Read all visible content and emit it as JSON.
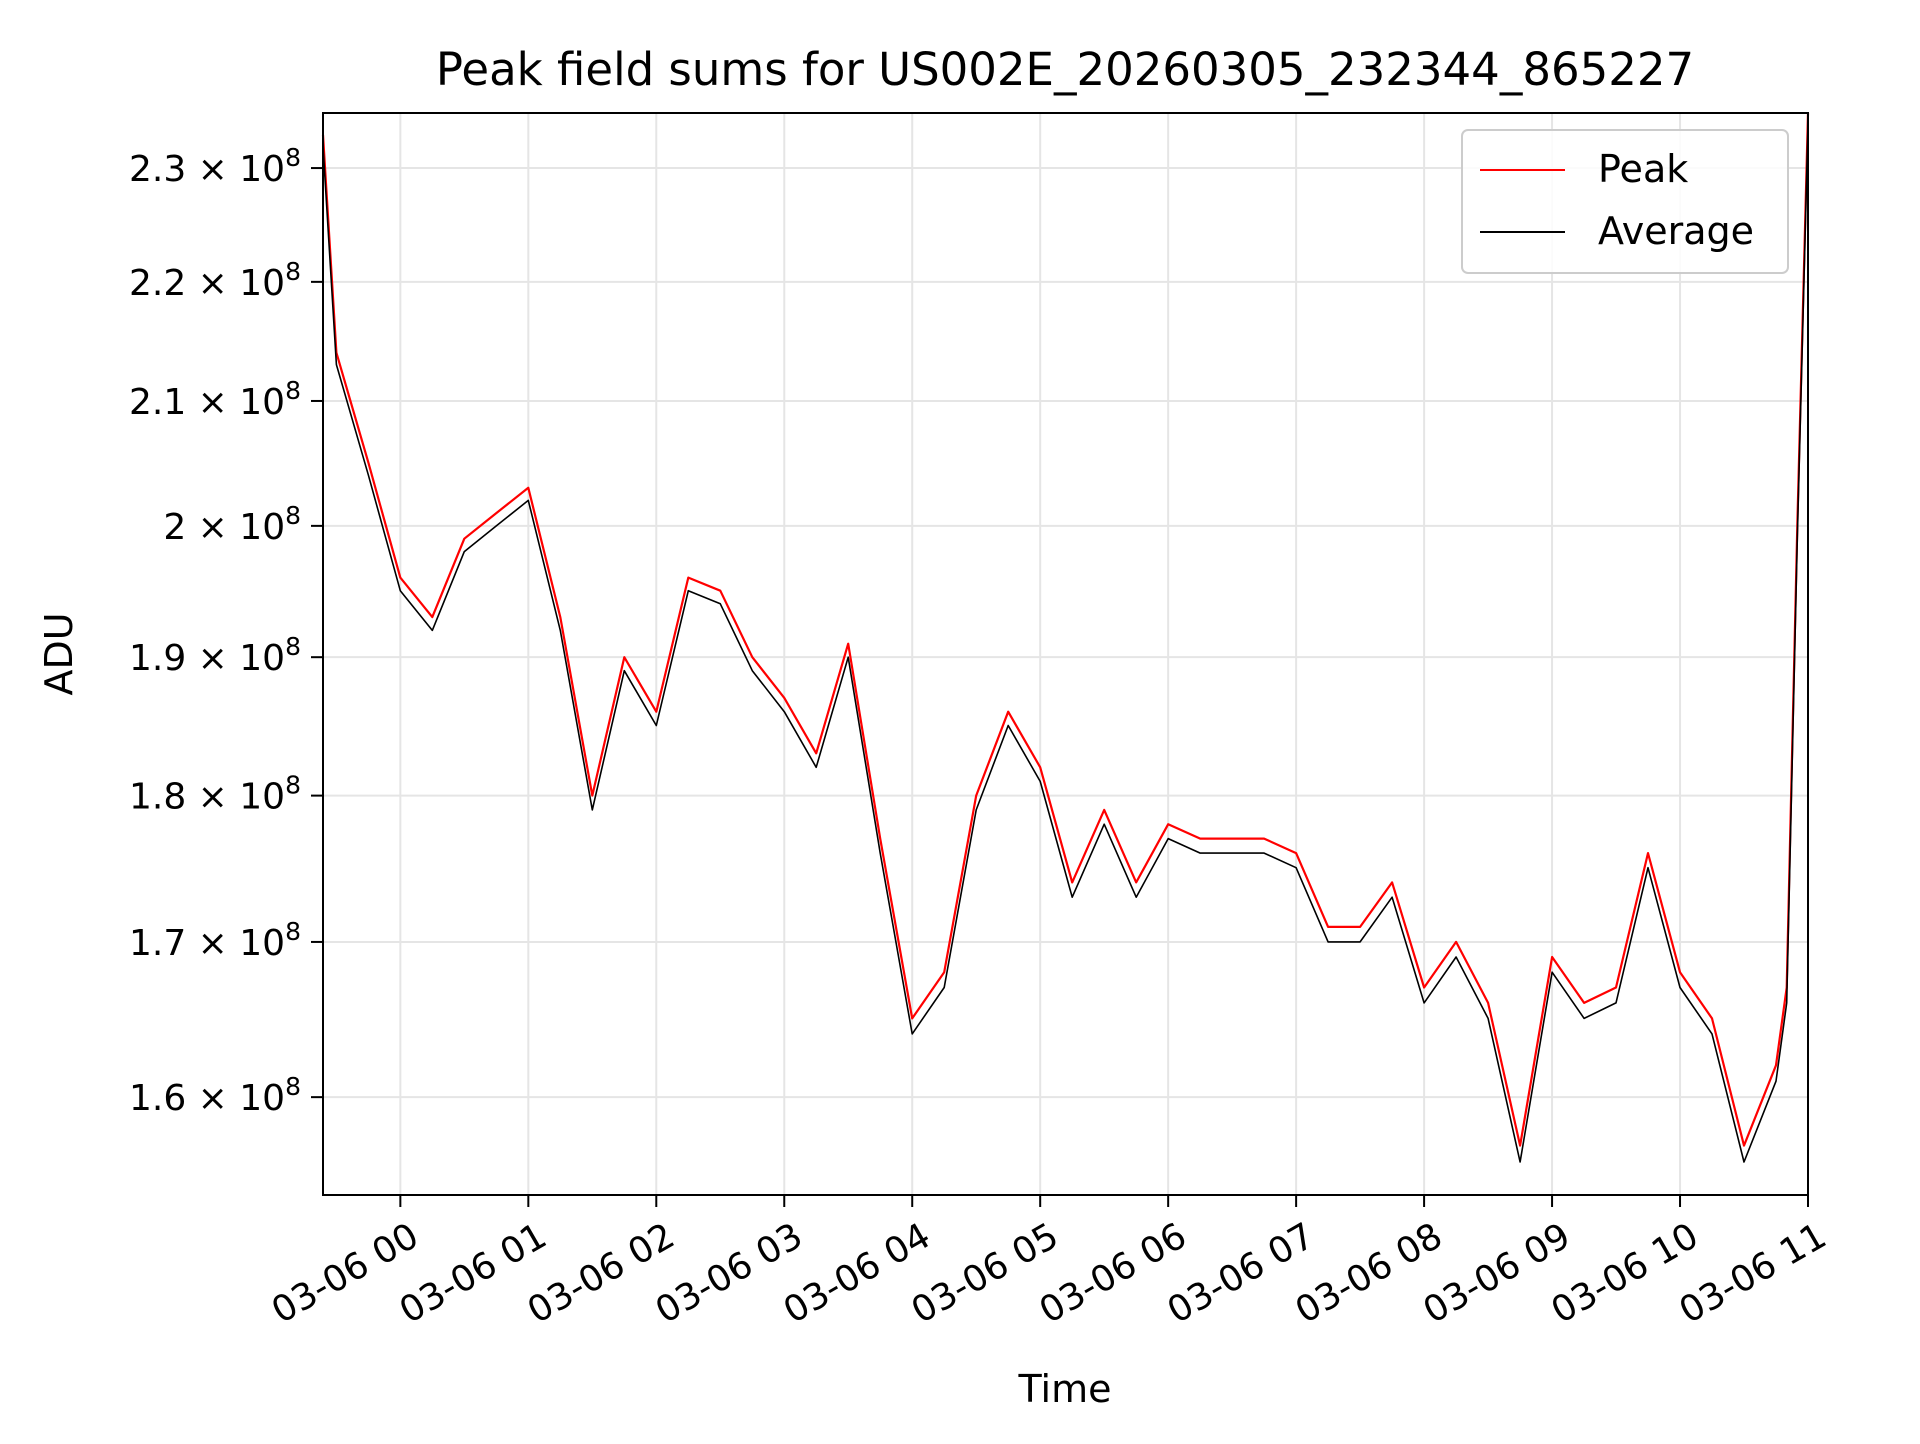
{
  "chart_data": {
    "type": "line",
    "title": "Peak field sums for US002E_20260305_232344_865227",
    "xlabel": "Time",
    "ylabel": "ADU",
    "x_range": [
      "2026-03-05 23:23:44",
      "2026-03-06 11:00:00"
    ],
    "y_range": [
      154000000,
      235000000
    ],
    "y_scale": "log",
    "grid": true,
    "legend": "top-right",
    "x_ticks": [
      "03-06 00",
      "03-06 01",
      "03-06 02",
      "03-06 03",
      "03-06 04",
      "03-06 05",
      "03-06 06",
      "03-06 07",
      "03-06 08",
      "03-06 09",
      "03-06 10",
      "03-06 11"
    ],
    "y_ticks": [
      {
        "value": 160000000,
        "mantissa": "1.6",
        "label": "1.6 × 10^8"
      },
      {
        "value": 170000000,
        "mantissa": "1.7",
        "label": "1.7 × 10^8"
      },
      {
        "value": 180000000,
        "mantissa": "1.8",
        "label": "1.8 × 10^8"
      },
      {
        "value": 190000000,
        "mantissa": "1.9",
        "label": "1.9 × 10^8"
      },
      {
        "value": 200000000,
        "mantissa": "2",
        "label": "2 × 10^8"
      },
      {
        "value": 210000000,
        "mantissa": "2.1",
        "label": "2.1 × 10^8"
      },
      {
        "value": 220000000,
        "mantissa": "2.2",
        "label": "2.2 × 10^8"
      },
      {
        "value": 230000000,
        "mantissa": "2.3",
        "label": "2.3 × 10^8"
      }
    ],
    "x": [
      "2026-03-05 23:23:44",
      "2026-03-05 23:30",
      "2026-03-05 23:45",
      "2026-03-06 00:00",
      "2026-03-06 00:15",
      "2026-03-06 00:30",
      "2026-03-06 00:45",
      "2026-03-06 01:00",
      "2026-03-06 01:15",
      "2026-03-06 01:30",
      "2026-03-06 01:45",
      "2026-03-06 02:00",
      "2026-03-06 02:15",
      "2026-03-06 02:30",
      "2026-03-06 02:45",
      "2026-03-06 03:00",
      "2026-03-06 03:15",
      "2026-03-06 03:30",
      "2026-03-06 03:45",
      "2026-03-06 04:00",
      "2026-03-06 04:15",
      "2026-03-06 04:30",
      "2026-03-06 04:45",
      "2026-03-06 05:00",
      "2026-03-06 05:15",
      "2026-03-06 05:30",
      "2026-03-06 05:45",
      "2026-03-06 06:00",
      "2026-03-06 06:15",
      "2026-03-06 06:30",
      "2026-03-06 06:45",
      "2026-03-06 07:00",
      "2026-03-06 07:15",
      "2026-03-06 07:30",
      "2026-03-06 07:45",
      "2026-03-06 08:00",
      "2026-03-06 08:15",
      "2026-03-06 08:30",
      "2026-03-06 08:45",
      "2026-03-06 09:00",
      "2026-03-06 09:15",
      "2026-03-06 09:30",
      "2026-03-06 09:45",
      "2026-03-06 10:00",
      "2026-03-06 10:15",
      "2026-03-06 10:30",
      "2026-03-06 10:45",
      "2026-03-06 10:50",
      "2026-03-06 10:55",
      "2026-03-06 11:00"
    ],
    "series": [
      {
        "name": "Peak",
        "color": "#ff0000",
        "values": [
          233000000,
          214000000,
          205000000,
          196000000,
          193000000,
          199000000,
          201000000,
          203000000,
          193000000,
          180000000,
          190000000,
          186000000,
          196000000,
          195000000,
          190000000,
          187000000,
          183000000,
          191000000,
          177000000,
          165000000,
          168000000,
          180000000,
          186000000,
          182000000,
          174000000,
          179000000,
          174000000,
          178000000,
          177000000,
          177000000,
          177000000,
          176000000,
          171000000,
          171000000,
          174000000,
          167000000,
          170000000,
          166000000,
          157000000,
          169000000,
          166000000,
          167000000,
          176000000,
          168000000,
          165000000,
          157000000,
          162000000,
          167000000,
          200000000,
          235000000
        ]
      },
      {
        "name": "Average",
        "color": "#000000",
        "values": [
          232000000,
          213000000,
          204000000,
          195000000,
          192000000,
          198000000,
          200000000,
          202000000,
          192000000,
          179000000,
          189000000,
          185000000,
          195000000,
          194000000,
          189000000,
          186000000,
          182000000,
          190000000,
          176000000,
          164000000,
          167000000,
          179000000,
          185000000,
          181000000,
          173000000,
          178000000,
          173000000,
          177000000,
          176000000,
          176000000,
          176000000,
          175000000,
          170000000,
          170000000,
          173000000,
          166000000,
          169000000,
          165000000,
          156000000,
          168000000,
          165000000,
          166000000,
          175000000,
          167000000,
          164000000,
          156000000,
          161000000,
          166000000,
          199000000,
          234000000
        ]
      }
    ]
  }
}
